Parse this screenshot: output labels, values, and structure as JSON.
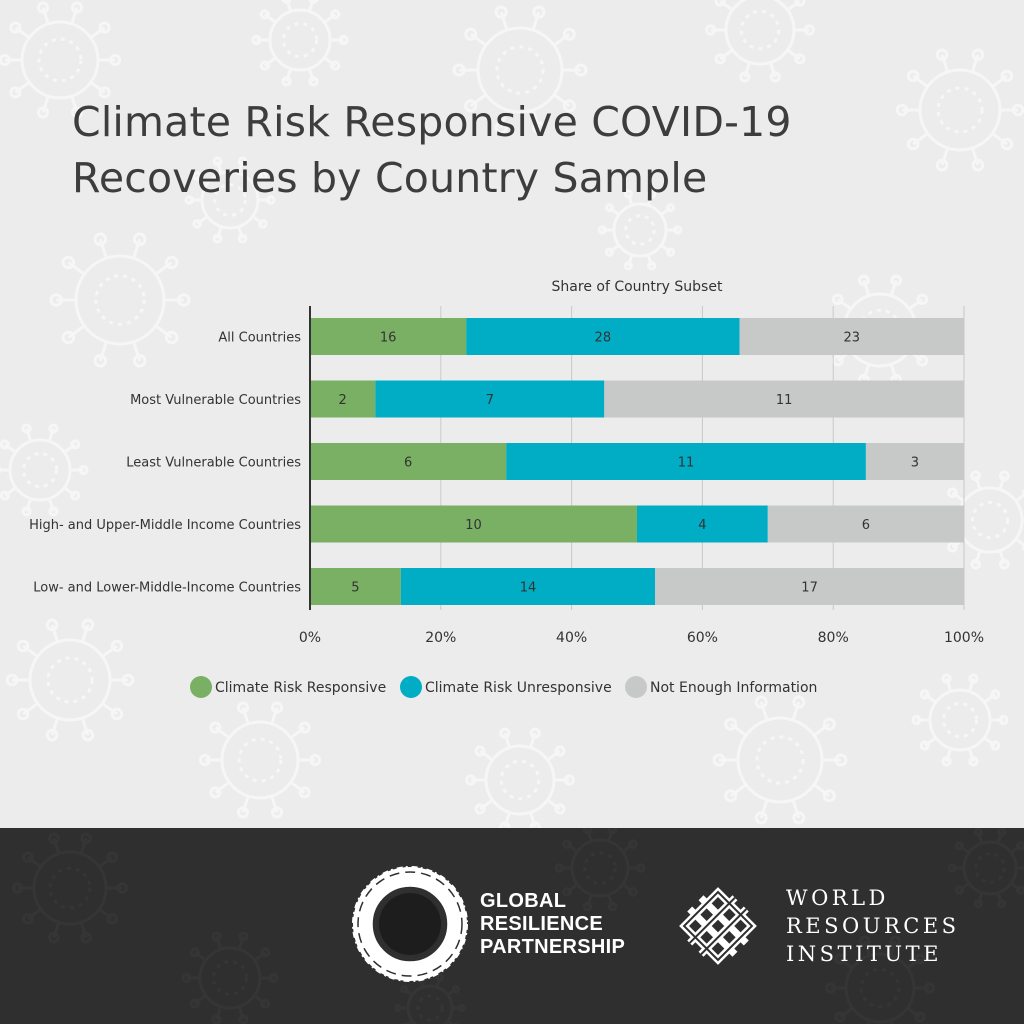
{
  "title_lines": [
    "Climate Risk Responsive COVID-19",
    "Recoveries by Country Sample"
  ],
  "chart_data": {
    "type": "bar",
    "orientation": "horizontal",
    "stacked": true,
    "normalized_percent": true,
    "title": "Share of Country Subset",
    "categories": [
      "All Countries",
      "Most Vulnerable Countries",
      "Least Vulnerable Countries",
      "High- and Upper-Middle Income Countries",
      "Low- and Lower-Middle-Income Countries"
    ],
    "series": [
      {
        "name": "Climate Risk Responsive",
        "color": "#79b063",
        "values": [
          16,
          2,
          6,
          10,
          5
        ]
      },
      {
        "name": "Climate Risk Unresponsive",
        "color": "#00adc4",
        "values": [
          28,
          7,
          11,
          4,
          14
        ]
      },
      {
        "name": "Not Enough Information",
        "color": "#c7c8c8",
        "values": [
          23,
          11,
          3,
          6,
          17
        ]
      }
    ],
    "xlim": [
      0,
      100
    ],
    "xticks": [
      "0%",
      "20%",
      "40%",
      "60%",
      "80%",
      "100%"
    ],
    "grid": true,
    "legend_position": "bottom"
  },
  "footer": {
    "grp_lines": [
      "GLOBAL",
      "RESILIENCE",
      "PARTNERSHIP"
    ],
    "wri_lines": [
      "WORLD",
      "RESOURCES",
      "INSTITUTE"
    ]
  }
}
